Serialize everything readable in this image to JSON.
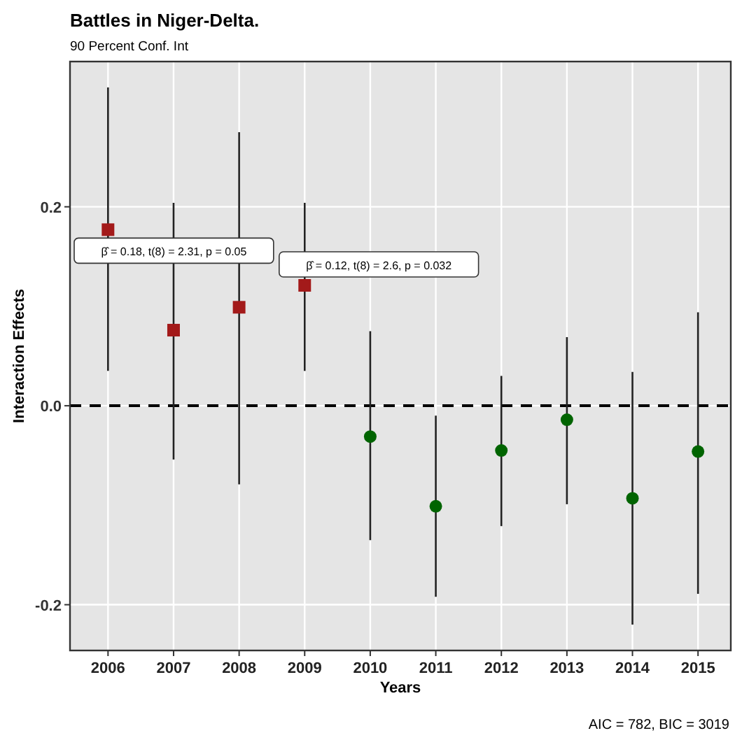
{
  "chart_data": {
    "type": "scatter",
    "title": "Battles in Niger-Delta.",
    "subtitle": "90 Percent Conf. Int",
    "xlabel": "Years",
    "ylabel": "Interaction Effects",
    "categories": [
      "2006",
      "2007",
      "2008",
      "2009",
      "2010",
      "2011",
      "2012",
      "2013",
      "2014",
      "2015"
    ],
    "series": [
      {
        "color": "#a31a1a",
        "marker": "square",
        "values": [
          0.177,
          0.076,
          0.099,
          0.121,
          null,
          null,
          null,
          null,
          null,
          null
        ],
        "errors": [
          [
            0.035,
            0.32
          ],
          [
            -0.054,
            0.204
          ],
          [
            -0.079,
            0.275
          ],
          [
            0.035,
            0.204
          ],
          null,
          null,
          null,
          null,
          null,
          null
        ]
      },
      {
        "color": "#006400",
        "marker": "circle",
        "values": [
          null,
          null,
          null,
          null,
          -0.031,
          -0.101,
          -0.045,
          -0.014,
          -0.093,
          -0.046
        ],
        "errors": [
          null,
          null,
          null,
          null,
          [
            -0.135,
            0.075
          ],
          [
            -0.192,
            -0.01
          ],
          [
            -0.121,
            0.03
          ],
          [
            -0.099,
            0.069
          ],
          [
            -0.22,
            0.034
          ],
          [
            -0.189,
            0.094
          ]
        ]
      }
    ],
    "ylim": [
      -0.246,
      0.346
    ],
    "yticks": [
      -0.2,
      {
        "value": 0,
        "label": "0.0"
      },
      0.2
    ],
    "grid": true,
    "ref_lines": [
      {
        "axis": "y",
        "value": 0,
        "line_style": "dashed",
        "color": "#000000"
      }
    ],
    "annotations": [
      {
        "text": "β̂ = 0.18, t(8) = 2.31, p = 0.05",
        "x": "2006",
        "y": 0.177
      },
      {
        "text": "β̂ = 0.12, t(8) = 2.6, p = 0.032",
        "x": "2009",
        "y": 0.121
      },
      "AIC = 782, BIC = 3019"
    ]
  }
}
